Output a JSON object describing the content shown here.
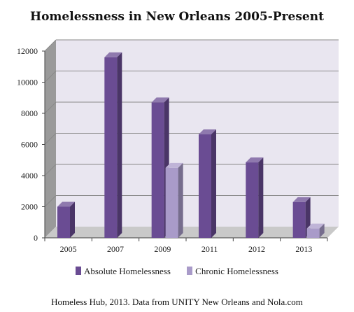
{
  "chart_data": {
    "type": "bar",
    "title": "Homelessness in New Orleans 2005-Present",
    "categories": [
      "2005",
      "2007",
      "2009",
      "2011",
      "2012",
      "2013"
    ],
    "series": [
      {
        "name": "Absolute Homelessness",
        "values": [
          2000,
          11600,
          8700,
          6650,
          4850,
          2300
        ],
        "color": "#6a4c93"
      },
      {
        "name": "Chronic Homelessness",
        "values": [
          null,
          null,
          4500,
          null,
          null,
          600
        ],
        "color": "#a99bc9"
      }
    ],
    "yticks": [
      "0",
      "2000",
      "4000",
      "6000",
      "8000",
      "10000",
      "12000"
    ],
    "ylim": [
      0,
      12000
    ],
    "grid": true,
    "legend_position": "bottom",
    "footer": "Homeless Hub, 2013. Data from UNITY New Orleans and Nola.com"
  }
}
